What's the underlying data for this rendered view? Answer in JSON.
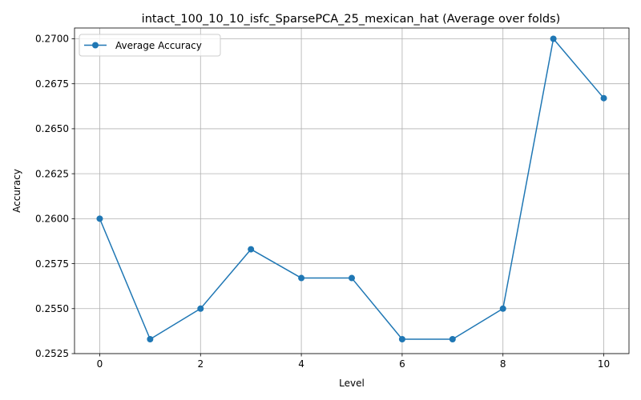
{
  "chart_data": {
    "type": "line",
    "title": "intact_100_10_10_isfc_SparsePCA_25_mexican_hat (Average over folds)",
    "xlabel": "Level",
    "ylabel": "Accuracy",
    "xlim": [
      -0.5,
      10.5
    ],
    "ylim": [
      0.2525,
      0.2706
    ],
    "xticks": [
      0,
      2,
      4,
      6,
      8,
      10
    ],
    "xtick_labels": [
      "0",
      "2",
      "4",
      "6",
      "8",
      "10"
    ],
    "yticks": [
      0.2525,
      0.255,
      0.2575,
      0.26,
      0.2625,
      0.265,
      0.2675,
      0.27
    ],
    "ytick_labels": [
      "0.2525",
      "0.2550",
      "0.2575",
      "0.2600",
      "0.2625",
      "0.2650",
      "0.2675",
      "0.2700"
    ],
    "grid": true,
    "legend_position": "top-left",
    "series": [
      {
        "name": "Average Accuracy",
        "color": "#1f77b4",
        "marker": "circle",
        "x": [
          0,
          1,
          2,
          3,
          4,
          5,
          6,
          7,
          8,
          9,
          10
        ],
        "y": [
          0.26,
          0.2533,
          0.255,
          0.2583,
          0.2567,
          0.2567,
          0.2533,
          0.2533,
          0.255,
          0.27,
          0.2667
        ]
      }
    ]
  }
}
